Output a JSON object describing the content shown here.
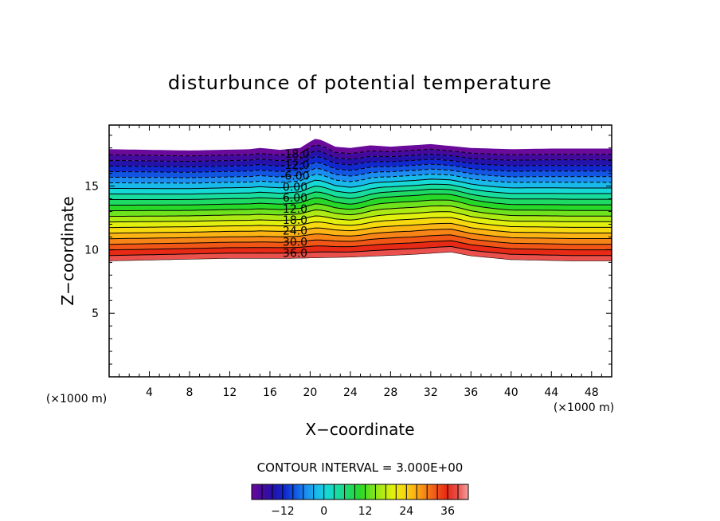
{
  "chart_data": {
    "type": "contour",
    "title": "disturbunce of potential temperature",
    "xlabel": "X−coordinate",
    "ylabel": "Z−coordinate",
    "x_unit": "(×1000 m)",
    "y_unit": "(×1000 m)",
    "xlim": [
      0,
      50
    ],
    "ylim": [
      0,
      19.8
    ],
    "x_ticks": [
      4,
      8,
      12,
      16,
      20,
      24,
      28,
      32,
      36,
      40,
      44,
      48
    ],
    "x_tick_labels": [
      "4",
      "8",
      "12",
      "16",
      "20",
      "24",
      "28",
      "32",
      "36",
      "40",
      "44",
      "48"
    ],
    "y_ticks": [
      5,
      10,
      15
    ],
    "y_tick_labels": [
      "5",
      "10",
      "15"
    ],
    "field_bottom_profile": {
      "x": [
        0,
        6,
        12,
        18,
        24,
        30,
        34,
        36,
        40,
        46,
        50
      ],
      "z": [
        9.1,
        9.2,
        9.3,
        9.3,
        9.4,
        9.6,
        9.8,
        9.5,
        9.2,
        9.1,
        9.1
      ]
    },
    "field_top_profile": {
      "x": [
        0,
        8,
        14,
        15,
        17,
        19,
        20,
        20.6,
        21.2,
        22.5,
        24,
        26,
        28,
        32,
        36,
        40,
        44,
        50
      ],
      "z": [
        17.9,
        17.8,
        17.9,
        18.0,
        17.85,
        18.0,
        18.5,
        18.75,
        18.6,
        18.1,
        18.0,
        18.2,
        18.1,
        18.3,
        18.0,
        17.9,
        17.95,
        17.95
      ]
    },
    "contour_levels_range": [
      -18,
      39
    ],
    "contour_labels": [
      "-18.0",
      "-12.0",
      "-6.00",
      "0.00",
      "6.00",
      "12.0",
      "18.0",
      "24.0",
      "30.0",
      "36.0"
    ],
    "contour_interval_text": "CONTOUR INTERVAL = 3.000E+00",
    "colorbar": {
      "range": [
        -21,
        42
      ],
      "tick_values": [
        -12,
        0,
        12,
        24,
        36
      ],
      "tick_labels": [
        "−12",
        "0",
        "12",
        "24",
        "36"
      ]
    },
    "colormap": [
      "#6a0a9a",
      "#2a0aa0",
      "#0a30d8",
      "#1c8cf0",
      "#16d8e8",
      "#18dc8c",
      "#28d828",
      "#9ce816",
      "#f2f20c",
      "#fcb414",
      "#f46418",
      "#e41c14",
      "#f4a0a0"
    ]
  }
}
